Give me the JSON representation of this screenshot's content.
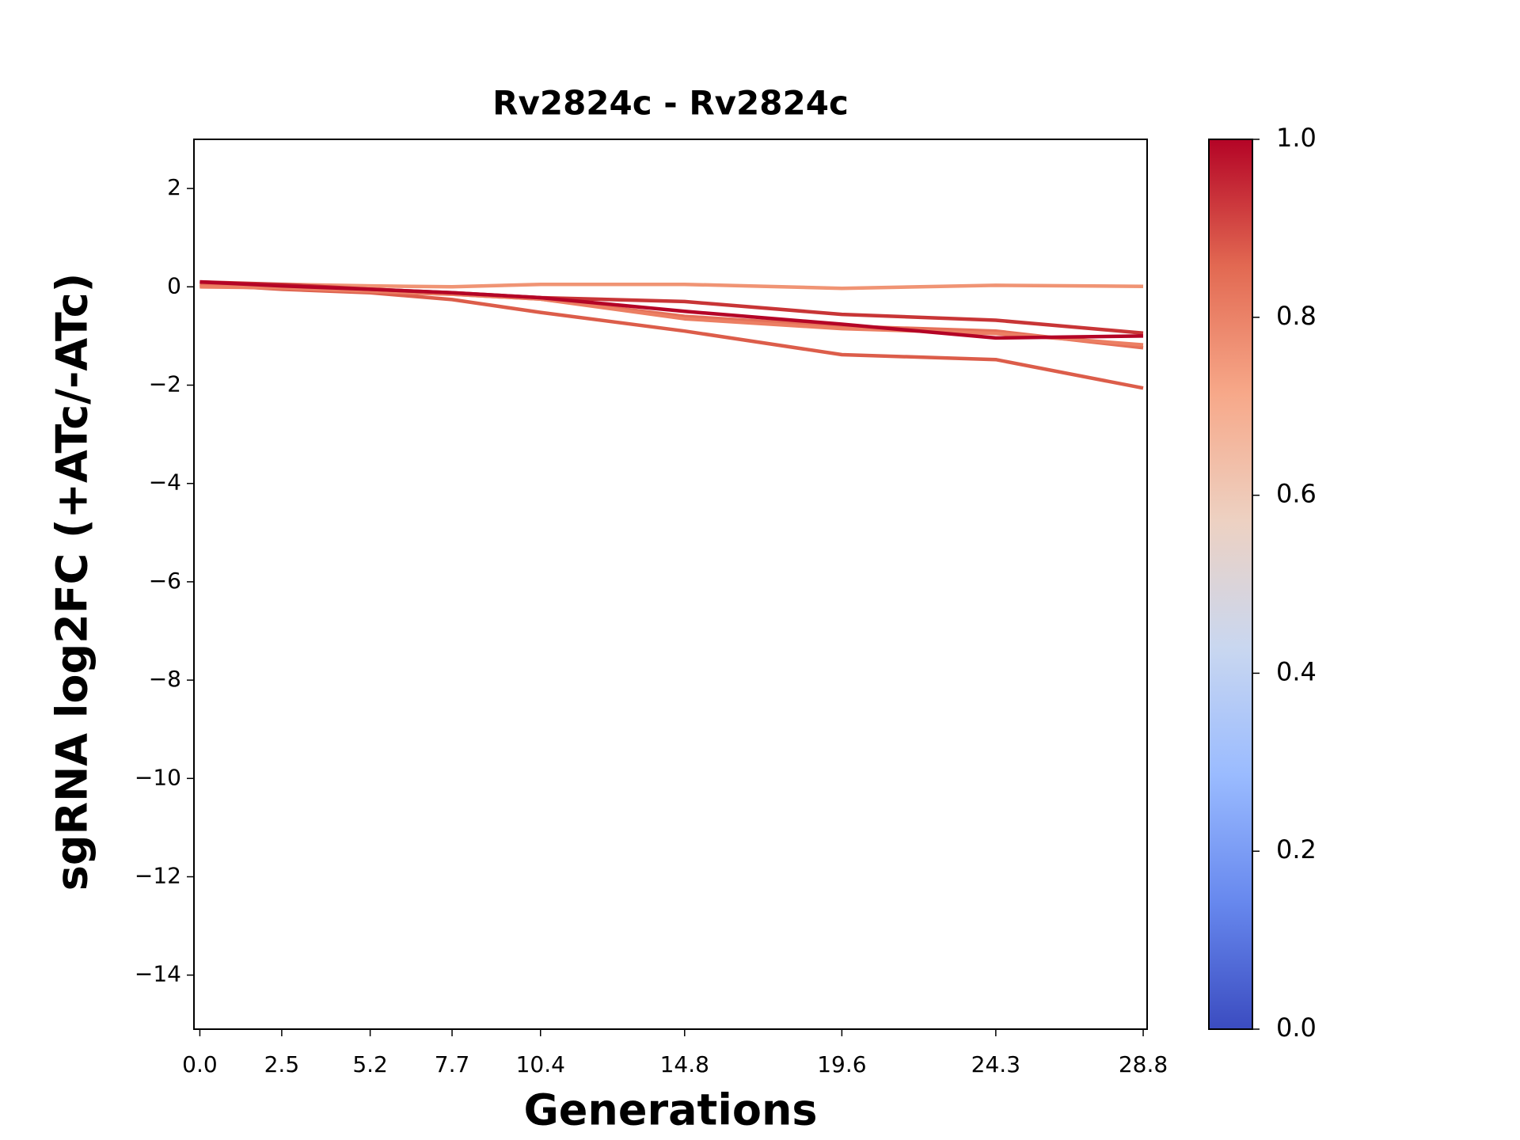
{
  "chart_data": {
    "type": "line",
    "title": "Rv2824c - Rv2824c",
    "xlabel": "Generations",
    "ylabel": "sgRNA log2FC (+ATc/-ATc)",
    "x": [
      0.0,
      2.5,
      5.2,
      7.7,
      10.4,
      14.8,
      19.6,
      24.3,
      28.8
    ],
    "xlim": [
      -0.18,
      28.92
    ],
    "xticks": [
      {
        "value": 0,
        "label": "0.0"
      },
      2.5,
      5.2,
      7.7,
      10.4,
      14.8,
      19.6,
      24.3,
      28.8
    ],
    "ylim": [
      -15.1,
      3
    ],
    "yticks": [
      {
        "value": -14,
        "label": "−14"
      },
      {
        "value": -12,
        "label": "−12"
      },
      {
        "value": -10,
        "label": "−10"
      },
      {
        "value": -8,
        "label": "−8"
      },
      {
        "value": -6,
        "label": "−6"
      },
      {
        "value": -4,
        "label": "−4"
      },
      {
        "value": -2,
        "label": "−2"
      },
      0,
      2
    ],
    "grid": false,
    "series": [
      {
        "color": "#f09474",
        "values": [
          0.0,
          0.05,
          0.02,
          0.0,
          0.05,
          0.05,
          -0.03,
          0.03,
          0.01
        ]
      },
      {
        "color": "#dc5d4a",
        "values": [
          0.05,
          -0.05,
          -0.12,
          -0.26,
          -0.52,
          -0.9,
          -1.38,
          -1.48,
          -2.06
        ]
      },
      {
        "color": "#e57058",
        "values": [
          0.02,
          -0.03,
          -0.1,
          -0.15,
          -0.25,
          -0.6,
          -0.8,
          -0.9,
          -1.24
        ]
      },
      {
        "color": "#ec7f63",
        "values": [
          0.0,
          -0.02,
          -0.08,
          -0.15,
          -0.25,
          -0.65,
          -0.85,
          -0.95,
          -1.18
        ]
      },
      {
        "color": "#c83536",
        "values": [
          0.1,
          0.05,
          -0.05,
          -0.12,
          -0.22,
          -0.3,
          -0.56,
          -0.68,
          -0.94
        ]
      },
      {
        "color": "#b40426",
        "values": [
          0.1,
          0.02,
          -0.05,
          -0.12,
          -0.22,
          -0.5,
          -0.76,
          -1.04,
          -1.0
        ]
      }
    ],
    "colorbar": {
      "lim": [
        0,
        1
      ],
      "ticks": [
        {
          "value": 0,
          "label": "0.0"
        },
        {
          "value": 0.2,
          "label": "0.2"
        },
        {
          "value": 0.4,
          "label": "0.4"
        },
        {
          "value": 0.6,
          "label": "0.6"
        },
        {
          "value": 0.8,
          "label": "0.8"
        },
        {
          "value": 1,
          "label": "1.0"
        }
      ],
      "colors": [
        "#3b4cc0",
        "#6788ee",
        "#9abbff",
        "#c9d7f0",
        "#edd1c2",
        "#f7a889",
        "#e26952",
        "#b40426"
      ]
    }
  }
}
